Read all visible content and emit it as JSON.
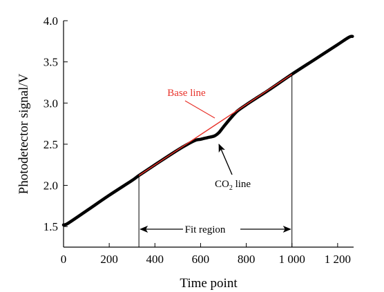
{
  "chart_data": {
    "type": "line",
    "xlabel": "Time point",
    "ylabel": "Photodetector signal/V",
    "xlim": [
      0,
      1270
    ],
    "ylim": [
      1.25,
      4.0
    ],
    "x_ticks": [
      0,
      200,
      400,
      600,
      800,
      1000,
      1200
    ],
    "x_tick_labels": [
      "0",
      "200",
      "400",
      "600",
      "800",
      "1 000",
      "1 200"
    ],
    "y_ticks": [
      1.5,
      2.0,
      2.5,
      3.0,
      3.5,
      4.0
    ],
    "y_tick_labels": [
      "1.5",
      "2.0",
      "2.5",
      "3.0",
      "3.5",
      "4.0"
    ],
    "grid": false,
    "series": [
      {
        "name": "CO2 line",
        "color": "#000000",
        "x": [
          0,
          20,
          100,
          200,
          300,
          330,
          400,
          500,
          550,
          580,
          600,
          630,
          660,
          680,
          700,
          730,
          760,
          800,
          850,
          900,
          1000,
          1100,
          1200,
          1250,
          1265
        ],
        "y": [
          1.52,
          1.54,
          1.69,
          1.88,
          2.06,
          2.12,
          2.25,
          2.43,
          2.51,
          2.55,
          2.56,
          2.58,
          2.6,
          2.64,
          2.71,
          2.81,
          2.9,
          2.98,
          3.07,
          3.16,
          3.35,
          3.53,
          3.71,
          3.8,
          3.81
        ]
      },
      {
        "name": "Base line",
        "color": "#e8322a",
        "x": [
          330,
          1000
        ],
        "y": [
          2.12,
          3.35
        ]
      }
    ],
    "annotations": {
      "base_line_label": "Base line",
      "co2_label_main": "CO",
      "co2_label_sub": "2",
      "co2_label_rest": " line",
      "fit_region_label": "Fit region",
      "fit_region": [
        330,
        1000
      ]
    }
  }
}
